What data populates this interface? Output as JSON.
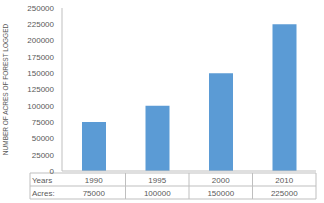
{
  "chart_data": {
    "type": "bar",
    "y_label": "NUMBER OF ACRES OF FOREST LOGGED",
    "categories": [
      "1990",
      "1995",
      "2000",
      "2010"
    ],
    "values": [
      75000,
      100000,
      150000,
      225000
    ],
    "color": "#5b9bd5",
    "ylim": [
      0,
      250000
    ],
    "yticks": [
      0,
      25000,
      50000,
      75000,
      100000,
      125000,
      150000,
      175000,
      200000,
      225000,
      250000
    ],
    "grid": false,
    "table_row_labels": [
      "Years",
      "Acres:"
    ]
  }
}
